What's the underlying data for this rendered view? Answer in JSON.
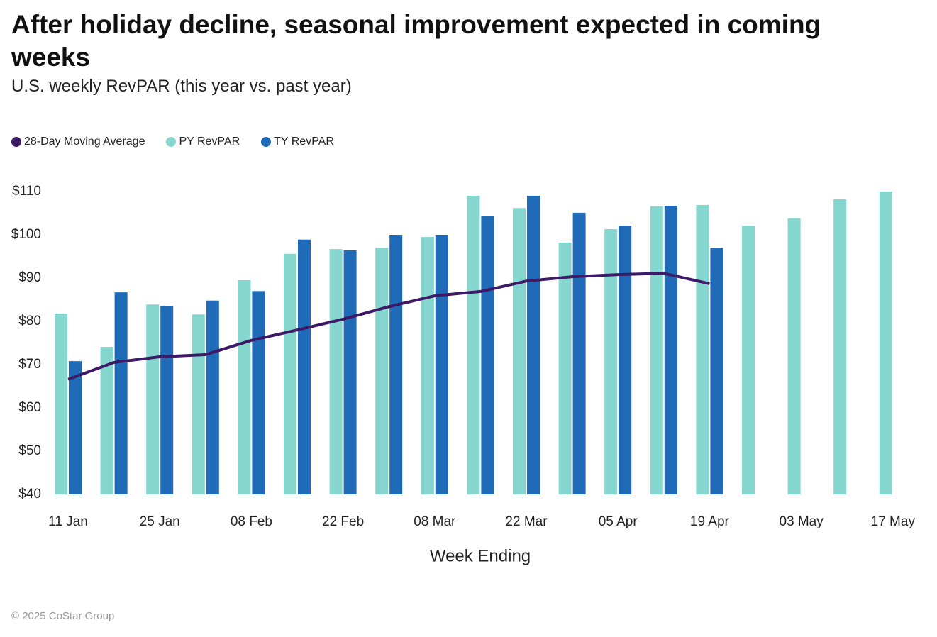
{
  "chart_data": {
    "type": "bar",
    "title": "After holiday decline, seasonal improvement expected in coming weeks",
    "subtitle": "U.S. weekly RevPAR (this year vs. past year)",
    "x_label": "Week Ending",
    "footer": "© 2025 CoStar Group",
    "categories": [
      "11 Jan",
      null,
      "25 Jan",
      null,
      "08 Feb",
      null,
      "22 Feb",
      null,
      "08 Mar",
      null,
      "22 Mar",
      null,
      "05 Apr",
      null,
      "19 Apr",
      null,
      "03 May",
      null,
      "17 May"
    ],
    "series": [
      {
        "name": "28-Day Moving Average",
        "type": "line",
        "color": "#3d1a66",
        "values": [
          66.6,
          70.5,
          71.8,
          72.3,
          75.6,
          78.0,
          80.5,
          83.4,
          85.9,
          86.9,
          89.3,
          90.3,
          90.8,
          91.1,
          88.7,
          null,
          null,
          null,
          null
        ]
      },
      {
        "name": "PY RevPAR",
        "type": "bar",
        "color": "#86d6d0",
        "values": [
          81.8,
          74.1,
          83.9,
          81.6,
          89.5,
          95.6,
          96.7,
          97.0,
          99.5,
          109.0,
          106.2,
          98.2,
          101.3,
          106.6,
          106.9,
          102.1,
          103.8,
          108.2,
          110.0
        ]
      },
      {
        "name": "TY RevPAR",
        "type": "bar",
        "color": "#1f6bb8",
        "values": [
          70.8,
          86.7,
          83.6,
          84.8,
          87.0,
          98.9,
          96.4,
          100.0,
          100.0,
          104.4,
          109.0,
          105.1,
          102.1,
          106.7,
          97.0,
          null,
          null,
          null,
          null
        ]
      }
    ],
    "ylim": [
      40,
      110
    ],
    "yticks": [
      {
        "value": 40,
        "label": "$40"
      },
      {
        "value": 50,
        "label": "$50"
      },
      {
        "value": 60,
        "label": "$60"
      },
      {
        "value": 70,
        "label": "$70"
      },
      {
        "value": 80,
        "label": "$80"
      },
      {
        "value": 90,
        "label": "$90"
      },
      {
        "value": 100,
        "label": "$100"
      },
      {
        "value": 110,
        "label": "$110"
      }
    ],
    "grid": false
  }
}
